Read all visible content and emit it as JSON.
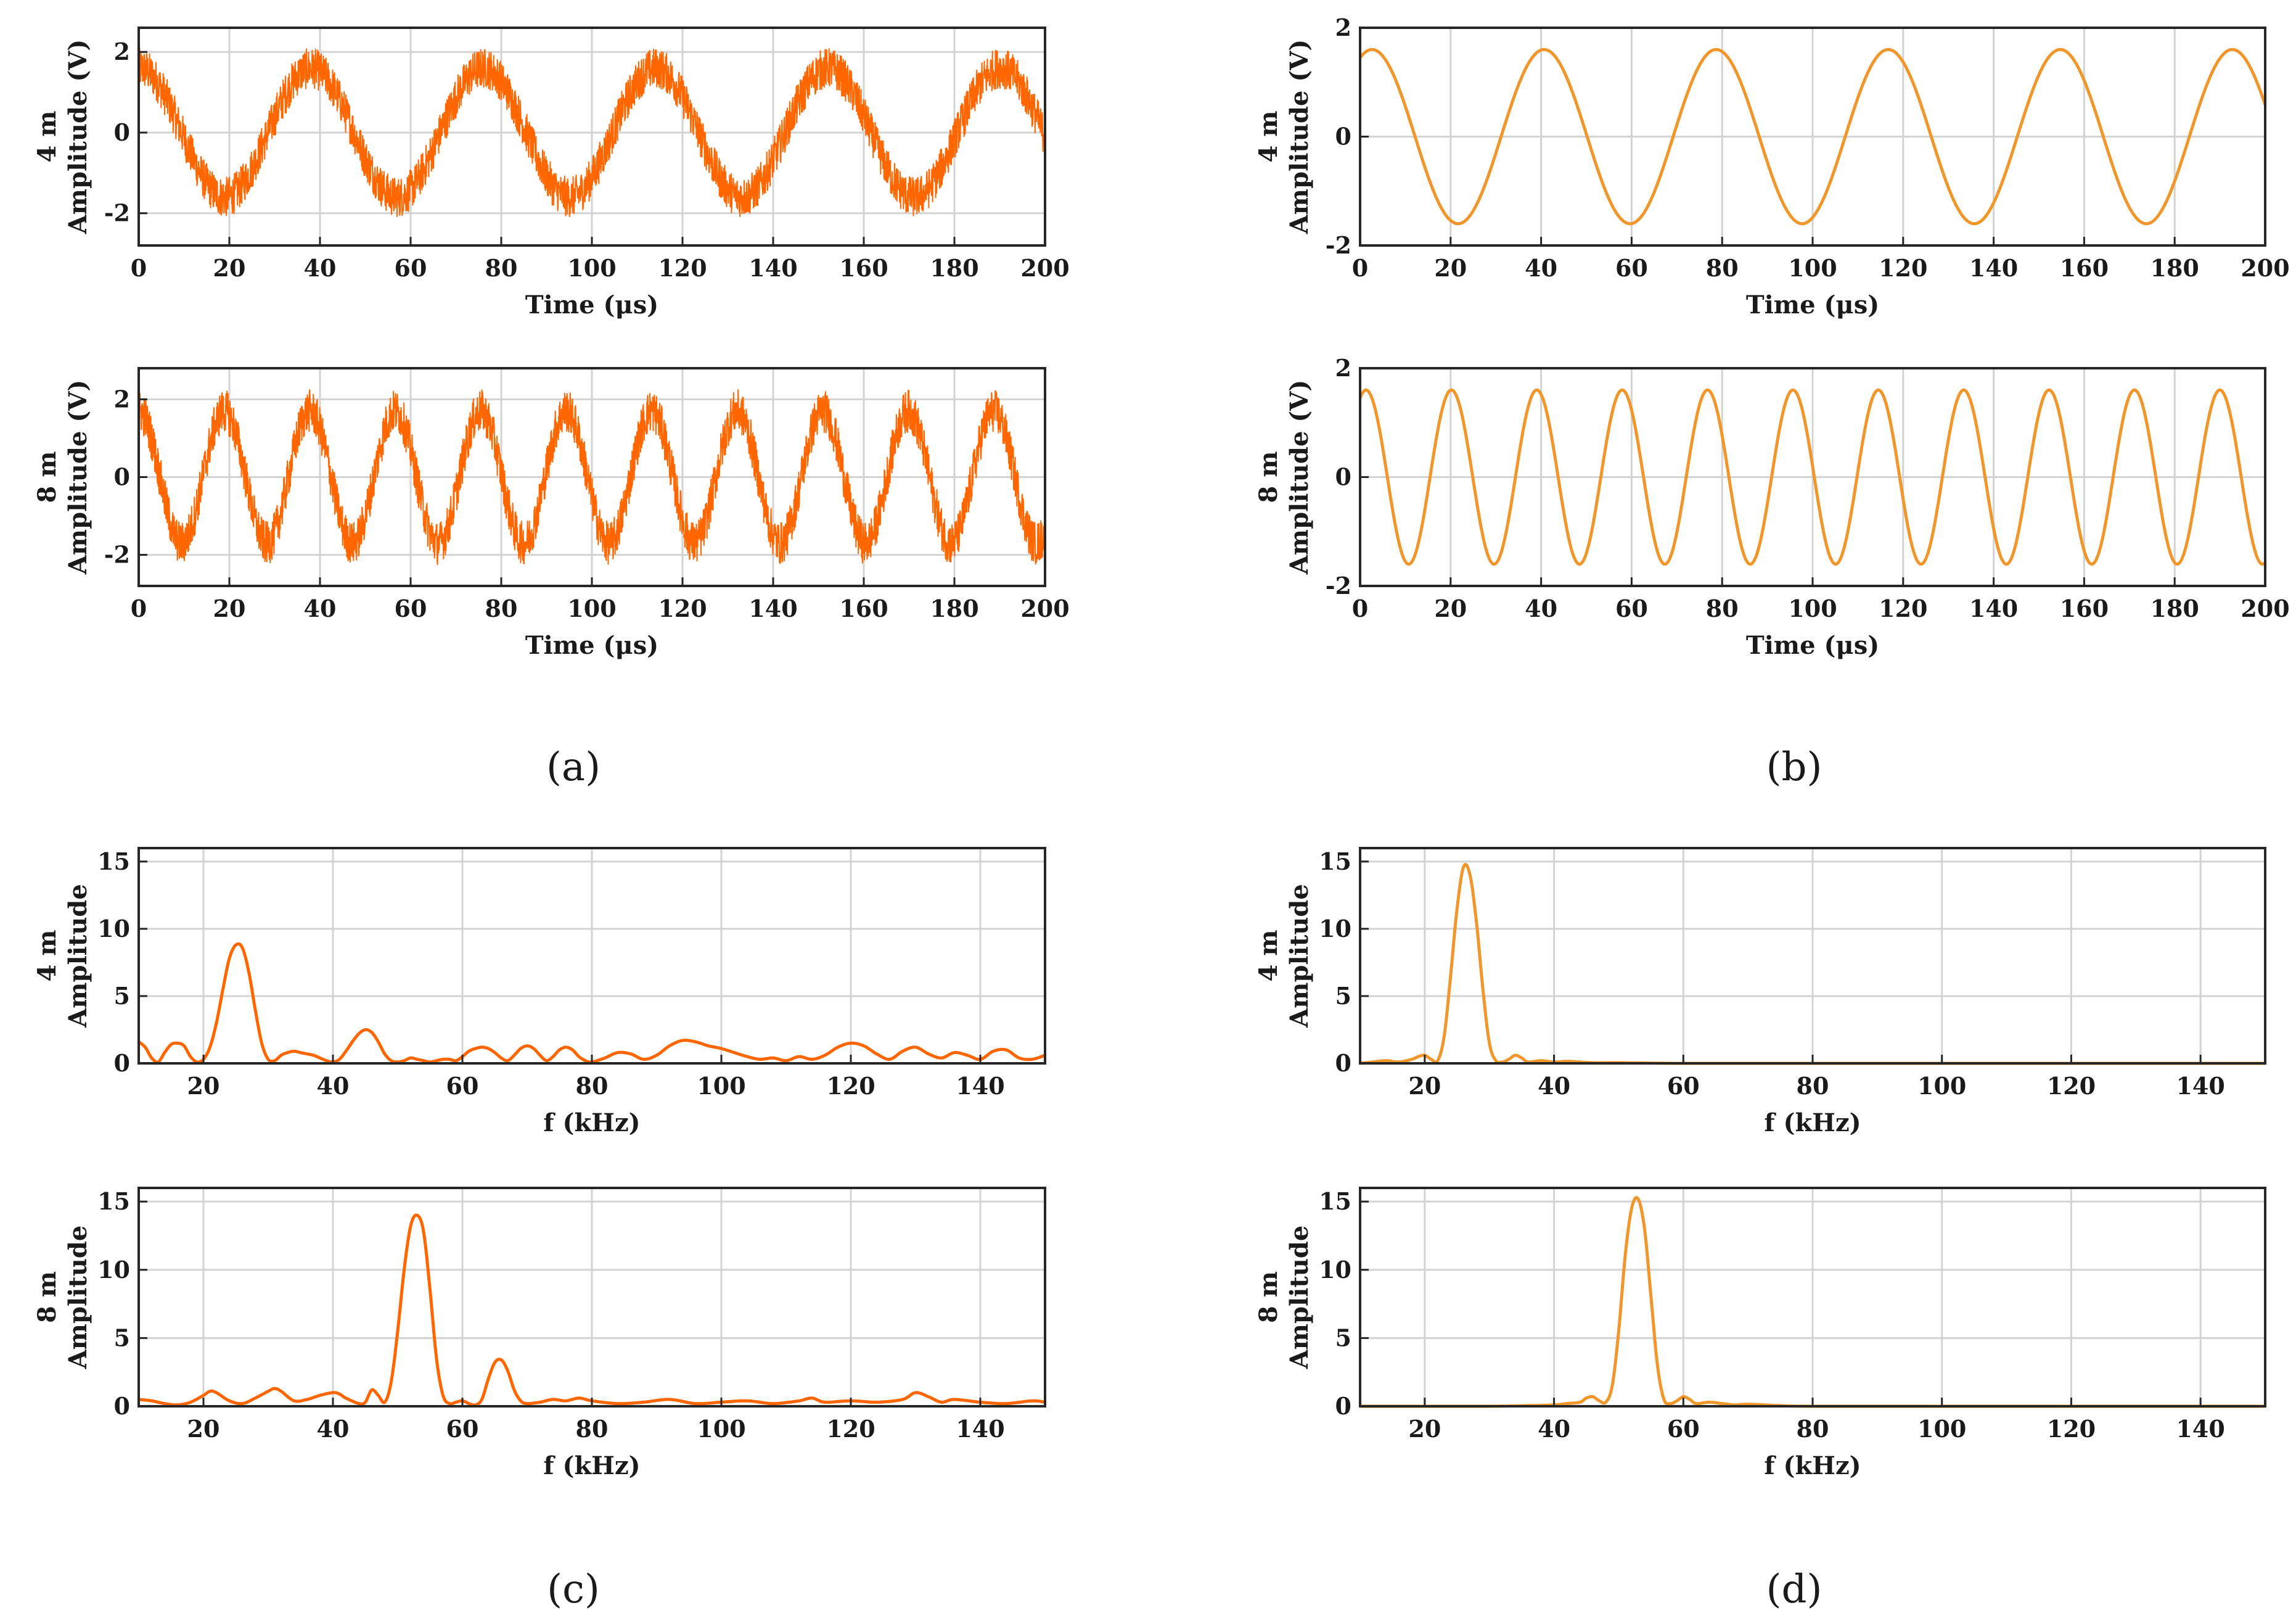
{
  "colors": {
    "noisy": "#ff6600",
    "filtered": "#f0962a",
    "grid": "#d3d3d3",
    "axis": "#262626"
  },
  "panels": [
    {
      "id": "a",
      "caption": "(a)"
    },
    {
      "id": "b",
      "caption": "(b)"
    },
    {
      "id": "c",
      "caption": "(c)"
    },
    {
      "id": "d",
      "caption": "(d)"
    }
  ],
  "chart_data": [
    {
      "id": "a-4m",
      "panel": "a",
      "type": "line",
      "style": "noisy",
      "title": "",
      "row_label": "4 m",
      "ylabel": "Amplitude (V)",
      "xlabel": "Time (μs)",
      "xlim": [
        0,
        200
      ],
      "ylim": [
        -2.8,
        2.6
      ],
      "xticks": [
        0,
        20,
        40,
        60,
        80,
        100,
        120,
        140,
        160,
        180,
        200
      ],
      "yticks": [
        -2,
        0,
        2
      ],
      "signal": {
        "kind": "sine",
        "amplitude": 1.6,
        "frequency_khz": 26.3,
        "phase_deg": 90,
        "noise_amplitude": 0.5,
        "x_start": 0,
        "x_end": 200
      }
    },
    {
      "id": "a-8m",
      "panel": "a",
      "type": "line",
      "style": "noisy",
      "title": "",
      "row_label": "8 m",
      "ylabel": "Amplitude (V)",
      "xlabel": "Time (μs)",
      "xlim": [
        0,
        200
      ],
      "ylim": [
        -2.8,
        2.8
      ],
      "xticks": [
        0,
        20,
        40,
        60,
        80,
        100,
        120,
        140,
        160,
        180,
        200
      ],
      "yticks": [
        -2,
        0,
        2
      ],
      "signal": {
        "kind": "sine",
        "amplitude": 1.7,
        "frequency_khz": 53.0,
        "phase_deg": 90,
        "noise_amplitude": 0.55,
        "x_start": 0,
        "x_end": 200
      }
    },
    {
      "id": "b-4m",
      "panel": "b",
      "type": "line",
      "style": "filtered",
      "title": "",
      "row_label": "4 m",
      "ylabel": "Amplitude (V)",
      "xlabel": "Time (μs)",
      "xlim": [
        0,
        200
      ],
      "ylim": [
        -2,
        2
      ],
      "xticks": [
        0,
        20,
        40,
        60,
        80,
        100,
        120,
        140,
        160,
        180,
        200
      ],
      "yticks": [
        -2,
        0,
        2
      ],
      "signal": {
        "kind": "sine",
        "amplitude": 1.6,
        "frequency_khz": 26.3,
        "phase_deg": 65,
        "noise_amplitude": 0,
        "x_start": 0,
        "x_end": 200
      }
    },
    {
      "id": "b-8m",
      "panel": "b",
      "type": "line",
      "style": "filtered",
      "title": "",
      "row_label": "8 m",
      "ylabel": "Amplitude (V)",
      "xlabel": "Time (μs)",
      "xlim": [
        0,
        200
      ],
      "ylim": [
        -2,
        2
      ],
      "xticks": [
        0,
        20,
        40,
        60,
        80,
        100,
        120,
        140,
        160,
        180,
        200
      ],
      "yticks": [
        -2,
        0,
        2
      ],
      "signal": {
        "kind": "sine",
        "amplitude": 1.6,
        "frequency_khz": 53.0,
        "phase_deg": 65,
        "noise_amplitude": 0,
        "x_start": 0,
        "x_end": 200
      }
    },
    {
      "id": "c-4m",
      "panel": "c",
      "type": "line",
      "style": "noisy",
      "title": "",
      "row_label": "4 m",
      "ylabel": "Amplitude",
      "xlabel": "f (kHz)",
      "xlim": [
        10,
        150
      ],
      "ylim": [
        0,
        16
      ],
      "xticks": [
        20,
        40,
        60,
        80,
        100,
        120,
        140
      ],
      "yticks": [
        0,
        5,
        10,
        15
      ],
      "x": [
        10,
        11,
        12,
        13,
        14,
        15,
        16,
        17,
        18,
        19,
        20,
        21,
        22,
        23,
        24,
        25,
        26,
        27,
        28,
        29,
        30,
        31,
        32,
        33,
        34,
        35,
        36,
        37,
        38,
        39,
        40,
        41,
        42,
        43,
        44,
        45,
        46,
        47,
        48,
        49,
        50,
        51,
        52,
        53,
        54,
        55,
        56,
        57,
        58,
        59,
        60,
        61,
        62,
        63,
        64,
        65,
        66,
        67,
        68,
        69,
        70,
        71,
        72,
        73,
        74,
        75,
        76,
        77,
        78,
        79,
        80,
        82,
        84,
        86,
        88,
        90,
        92,
        94,
        96,
        98,
        100,
        102,
        104,
        106,
        108,
        110,
        112,
        114,
        116,
        118,
        120,
        122,
        124,
        126,
        128,
        130,
        132,
        134,
        136,
        138,
        140,
        142,
        144,
        146,
        148,
        150
      ],
      "y": [
        1.6,
        1.2,
        0.4,
        0.1,
        0.8,
        1.4,
        1.5,
        1.3,
        0.5,
        0.1,
        0.3,
        1.2,
        3.0,
        5.5,
        7.8,
        8.8,
        8.6,
        6.8,
        4.0,
        1.5,
        0.3,
        0.2,
        0.6,
        0.8,
        0.9,
        0.8,
        0.7,
        0.6,
        0.4,
        0.2,
        0.1,
        0.3,
        0.9,
        1.6,
        2.2,
        2.5,
        2.3,
        1.6,
        0.7,
        0.2,
        0.1,
        0.2,
        0.4,
        0.3,
        0.2,
        0.1,
        0.2,
        0.3,
        0.3,
        0.2,
        0.5,
        0.9,
        1.1,
        1.2,
        1.1,
        0.8,
        0.4,
        0.2,
        0.6,
        1.1,
        1.3,
        1.1,
        0.6,
        0.2,
        0.5,
        1.0,
        1.2,
        1.0,
        0.5,
        0.2,
        0.1,
        0.4,
        0.8,
        0.7,
        0.3,
        0.6,
        1.3,
        1.7,
        1.6,
        1.3,
        1.1,
        0.8,
        0.5,
        0.3,
        0.4,
        0.2,
        0.5,
        0.3,
        0.6,
        1.2,
        1.5,
        1.3,
        0.7,
        0.3,
        0.9,
        1.2,
        0.7,
        0.4,
        0.8,
        0.6,
        0.3,
        0.9,
        1.0,
        0.4,
        0.3,
        0.6
      ]
    },
    {
      "id": "c-8m",
      "panel": "c",
      "type": "line",
      "style": "noisy",
      "title": "",
      "row_label": "8 m",
      "ylabel": "Amplitude",
      "xlabel": "f (kHz)",
      "xlim": [
        10,
        150
      ],
      "ylim": [
        0,
        16
      ],
      "xticks": [
        20,
        40,
        60,
        80,
        100,
        120,
        140
      ],
      "yticks": [
        0,
        5,
        10,
        15
      ],
      "x": [
        10,
        12,
        14,
        16,
        18,
        20,
        21,
        22,
        24,
        26,
        28,
        30,
        31,
        32,
        34,
        36,
        38,
        40,
        41,
        42,
        44,
        45,
        46,
        47,
        48,
        49,
        50,
        51,
        52,
        53,
        54,
        55,
        56,
        57,
        58,
        59,
        60,
        61,
        62,
        63,
        64,
        65,
        66,
        67,
        68,
        69,
        70,
        72,
        74,
        76,
        78,
        80,
        84,
        88,
        92,
        96,
        100,
        104,
        108,
        112,
        114,
        116,
        120,
        124,
        128,
        130,
        132,
        134,
        136,
        140,
        144,
        148,
        150
      ],
      "y": [
        0.5,
        0.4,
        0.2,
        0.1,
        0.3,
        0.8,
        1.1,
        1.0,
        0.4,
        0.2,
        0.6,
        1.1,
        1.3,
        1.1,
        0.4,
        0.5,
        0.8,
        1.0,
        0.9,
        0.6,
        0.2,
        0.3,
        1.2,
        0.8,
        0.3,
        1.8,
        5.5,
        10.0,
        13.2,
        14.0,
        12.8,
        8.5,
        3.5,
        0.8,
        0.2,
        0.3,
        0.4,
        0.2,
        0.1,
        0.5,
        2.0,
        3.2,
        3.4,
        2.6,
        1.2,
        0.4,
        0.2,
        0.3,
        0.5,
        0.4,
        0.6,
        0.4,
        0.2,
        0.3,
        0.5,
        0.2,
        0.3,
        0.4,
        0.2,
        0.4,
        0.6,
        0.3,
        0.4,
        0.3,
        0.5,
        1.0,
        0.7,
        0.3,
        0.5,
        0.3,
        0.2,
        0.4,
        0.3
      ]
    },
    {
      "id": "d-4m",
      "panel": "d",
      "type": "line",
      "style": "filtered",
      "title": "",
      "row_label": "4 m",
      "ylabel": "Amplitude",
      "xlabel": "f (kHz)",
      "xlim": [
        10,
        150
      ],
      "ylim": [
        0,
        16
      ],
      "xticks": [
        20,
        40,
        60,
        80,
        100,
        120,
        140
      ],
      "yticks": [
        0,
        5,
        10,
        15
      ],
      "x": [
        10,
        12,
        14,
        16,
        18,
        19,
        20,
        21,
        22,
        23,
        24,
        25,
        26,
        27,
        28,
        29,
        30,
        31,
        32,
        33,
        34,
        35,
        36,
        38,
        40,
        42,
        44,
        46,
        50,
        55,
        60,
        80,
        100,
        120,
        150
      ],
      "y": [
        0.0,
        0.1,
        0.2,
        0.1,
        0.3,
        0.5,
        0.6,
        0.3,
        0.2,
        2.0,
        6.5,
        11.5,
        14.6,
        14.0,
        10.5,
        5.5,
        1.5,
        0.2,
        0.1,
        0.3,
        0.6,
        0.4,
        0.1,
        0.2,
        0.1,
        0.15,
        0.1,
        0.05,
        0.05,
        0.02,
        0.0,
        0.0,
        0.0,
        0.0,
        0.0
      ]
    },
    {
      "id": "d-8m",
      "panel": "d",
      "type": "line",
      "style": "filtered",
      "title": "",
      "row_label": "8 m",
      "ylabel": "Amplitude",
      "xlabel": "f (kHz)",
      "xlim": [
        10,
        150
      ],
      "ylim": [
        0,
        16
      ],
      "xticks": [
        20,
        40,
        60,
        80,
        100,
        120,
        140
      ],
      "yticks": [
        0,
        5,
        10,
        15
      ],
      "x": [
        10,
        20,
        30,
        36,
        40,
        42,
        44,
        45,
        46,
        47,
        48,
        49,
        50,
        51,
        52,
        53,
        54,
        55,
        56,
        57,
        58,
        59,
        60,
        61,
        62,
        64,
        66,
        68,
        70,
        75,
        80,
        100,
        120,
        150
      ],
      "y": [
        0.0,
        0.0,
        0.0,
        0.05,
        0.1,
        0.2,
        0.3,
        0.6,
        0.7,
        0.4,
        0.3,
        1.5,
        5.5,
        11.0,
        14.5,
        15.2,
        13.0,
        8.0,
        3.0,
        0.5,
        0.2,
        0.4,
        0.7,
        0.5,
        0.2,
        0.3,
        0.2,
        0.1,
        0.15,
        0.05,
        0.0,
        0.0,
        0.0,
        0.0
      ]
    }
  ]
}
